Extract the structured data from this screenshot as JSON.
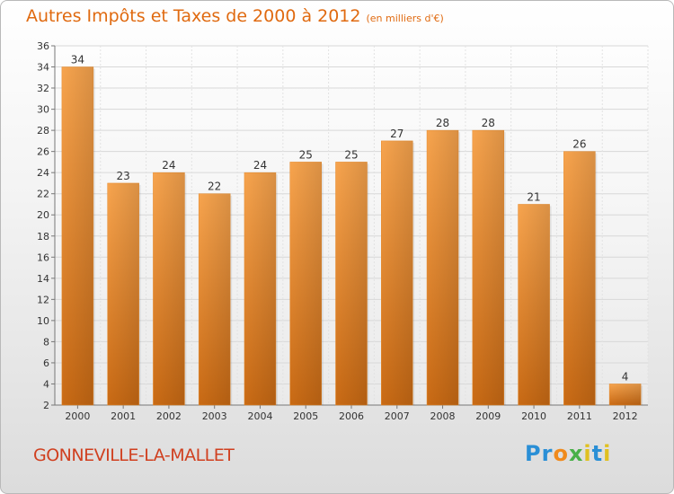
{
  "header": {
    "title": "Autres Impôts et Taxes de 2000 à 2012",
    "unit": "(en milliers d'€)"
  },
  "footer": {
    "commune": "GONNEVILLE-LA-MALLET",
    "logo": "Proxiti"
  },
  "colors": {
    "bar_light": "#f7a44e",
    "bar_dark": "#c96a14",
    "title": "#e06a10",
    "commune": "#d04020"
  },
  "chart_data": {
    "type": "bar",
    "title": "Autres Impôts et Taxes de 2000 à 2012",
    "subtitle": "(en milliers d'€)",
    "categories": [
      "2000",
      "2001",
      "2002",
      "2003",
      "2004",
      "2005",
      "2006",
      "2007",
      "2008",
      "2009",
      "2010",
      "2011",
      "2012"
    ],
    "values": [
      34,
      23,
      24,
      22,
      24,
      25,
      25,
      27,
      28,
      28,
      21,
      26,
      4
    ],
    "ylim": [
      2,
      36
    ],
    "yticks": [
      2,
      4,
      6,
      8,
      10,
      12,
      14,
      16,
      18,
      20,
      22,
      24,
      26,
      28,
      30,
      32,
      34,
      36
    ],
    "grid": true,
    "legend": "none"
  }
}
